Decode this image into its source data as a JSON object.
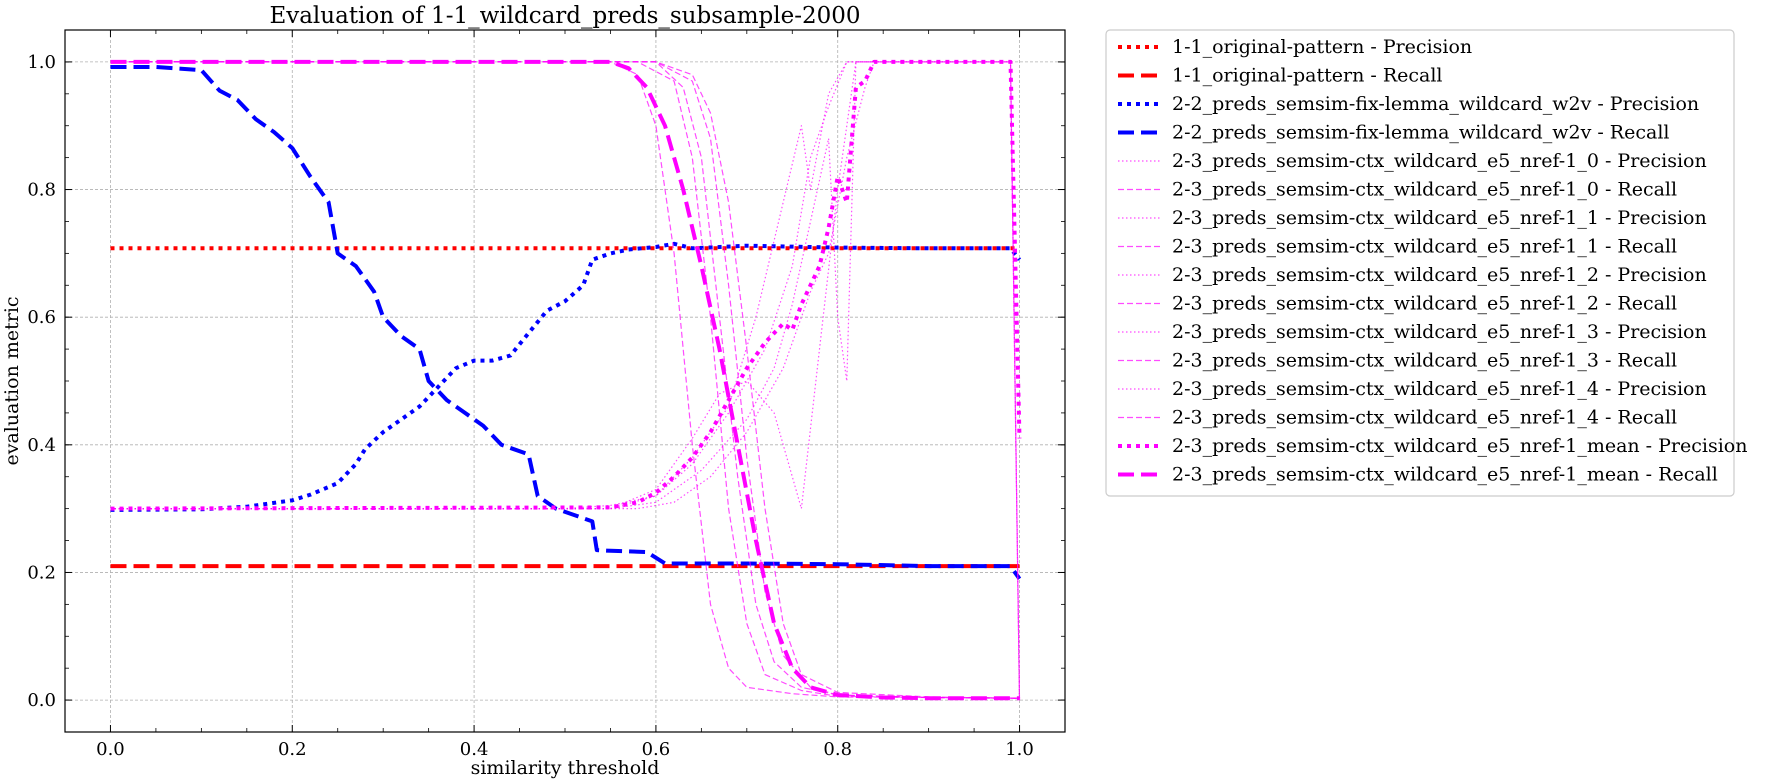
{
  "chart_data": {
    "type": "line",
    "title": "Evaluation of 1-1_wildcard_preds_subsample-2000",
    "xlabel": "similarity threshold",
    "ylabel": "evaluation metric",
    "xlim": [
      -0.05,
      1.05
    ],
    "ylim": [
      -0.05,
      1.05
    ],
    "xticks": [
      "0.0",
      "0.2",
      "0.4",
      "0.6",
      "0.8",
      "1.0"
    ],
    "yticks": [
      "0.0",
      "0.2",
      "0.4",
      "0.6",
      "0.8",
      "1.0"
    ],
    "grid": true,
    "legend_position": "outside-right-top",
    "series": [
      {
        "name": "1-1_original-pattern - Precision",
        "color": "#ff0000",
        "style": "dotted",
        "width": "thick",
        "points": [
          [
            0.0,
            0.708
          ],
          [
            1.0,
            0.708
          ]
        ]
      },
      {
        "name": "1-1_original-pattern - Recall",
        "color": "#ff0000",
        "style": "dashed",
        "width": "thick",
        "points": [
          [
            0.0,
            0.21
          ],
          [
            1.0,
            0.21
          ]
        ]
      },
      {
        "name": "2-2_preds_semsim-fix-lemma_wildcard_w2v - Precision",
        "color": "#0000ff",
        "style": "dotted",
        "width": "thick",
        "points": [
          [
            0.0,
            0.298
          ],
          [
            0.1,
            0.299
          ],
          [
            0.15,
            0.303
          ],
          [
            0.2,
            0.313
          ],
          [
            0.22,
            0.322
          ],
          [
            0.25,
            0.34
          ],
          [
            0.27,
            0.37
          ],
          [
            0.28,
            0.393
          ],
          [
            0.3,
            0.42
          ],
          [
            0.32,
            0.44
          ],
          [
            0.34,
            0.46
          ],
          [
            0.36,
            0.49
          ],
          [
            0.38,
            0.52
          ],
          [
            0.4,
            0.532
          ],
          [
            0.42,
            0.532
          ],
          [
            0.44,
            0.54
          ],
          [
            0.46,
            0.575
          ],
          [
            0.48,
            0.61
          ],
          [
            0.5,
            0.625
          ],
          [
            0.52,
            0.65
          ],
          [
            0.53,
            0.69
          ],
          [
            0.55,
            0.7
          ],
          [
            0.57,
            0.706
          ],
          [
            0.6,
            0.71
          ],
          [
            0.62,
            0.715
          ],
          [
            0.64,
            0.708
          ],
          [
            0.7,
            0.712
          ],
          [
            0.8,
            0.709
          ],
          [
            0.9,
            0.708
          ],
          [
            0.99,
            0.708
          ],
          [
            1.0,
            0.69
          ]
        ]
      },
      {
        "name": "2-2_preds_semsim-fix-lemma_wildcard_w2v - Recall",
        "color": "#0000ff",
        "style": "dashed",
        "width": "thick",
        "points": [
          [
            0.0,
            0.992
          ],
          [
            0.05,
            0.992
          ],
          [
            0.1,
            0.987
          ],
          [
            0.12,
            0.955
          ],
          [
            0.14,
            0.94
          ],
          [
            0.16,
            0.91
          ],
          [
            0.18,
            0.89
          ],
          [
            0.2,
            0.865
          ],
          [
            0.22,
            0.82
          ],
          [
            0.24,
            0.78
          ],
          [
            0.25,
            0.7
          ],
          [
            0.27,
            0.68
          ],
          [
            0.29,
            0.64
          ],
          [
            0.3,
            0.6
          ],
          [
            0.32,
            0.57
          ],
          [
            0.34,
            0.55
          ],
          [
            0.35,
            0.5
          ],
          [
            0.37,
            0.47
          ],
          [
            0.39,
            0.45
          ],
          [
            0.41,
            0.43
          ],
          [
            0.43,
            0.4
          ],
          [
            0.46,
            0.385
          ],
          [
            0.47,
            0.32
          ],
          [
            0.49,
            0.3
          ],
          [
            0.51,
            0.29
          ],
          [
            0.53,
            0.28
          ],
          [
            0.535,
            0.235
          ],
          [
            0.55,
            0.234
          ],
          [
            0.59,
            0.232
          ],
          [
            0.61,
            0.214
          ],
          [
            0.7,
            0.214
          ],
          [
            0.8,
            0.213
          ],
          [
            0.9,
            0.21
          ],
          [
            0.99,
            0.21
          ],
          [
            1.0,
            0.19
          ]
        ]
      },
      {
        "name": "2-3_preds_semsim-ctx_wildcard_e5_nref-1_0 - Precision",
        "color": "#ff00ff",
        "style": "dotted",
        "width": "thin",
        "points": [
          [
            0.0,
            0.3
          ],
          [
            0.5,
            0.3
          ],
          [
            0.55,
            0.305
          ],
          [
            0.6,
            0.32
          ],
          [
            0.64,
            0.37
          ],
          [
            0.68,
            0.45
          ],
          [
            0.72,
            0.55
          ],
          [
            0.75,
            0.68
          ],
          [
            0.77,
            0.85
          ],
          [
            0.79,
            0.93
          ],
          [
            0.81,
            1.0
          ],
          [
            0.99,
            1.0
          ],
          [
            1.0,
            0.0
          ]
        ]
      },
      {
        "name": "2-3_preds_semsim-ctx_wildcard_e5_nref-1_0 - Recall",
        "color": "#ff00ff",
        "style": "dashed",
        "width": "thin",
        "points": [
          [
            0.0,
            1.0
          ],
          [
            0.55,
            1.0
          ],
          [
            0.58,
            0.98
          ],
          [
            0.6,
            0.9
          ],
          [
            0.62,
            0.7
          ],
          [
            0.64,
            0.4
          ],
          [
            0.66,
            0.15
          ],
          [
            0.68,
            0.05
          ],
          [
            0.7,
            0.02
          ],
          [
            0.75,
            0.01
          ],
          [
            0.8,
            0.005
          ],
          [
            1.0,
            0.003
          ]
        ]
      },
      {
        "name": "2-3_preds_semsim-ctx_wildcard_e5_nref-1_1 - Precision",
        "color": "#ff00ff",
        "style": "dotted",
        "width": "thin",
        "points": [
          [
            0.0,
            0.3
          ],
          [
            0.55,
            0.3
          ],
          [
            0.6,
            0.33
          ],
          [
            0.64,
            0.41
          ],
          [
            0.67,
            0.48
          ],
          [
            0.7,
            0.5
          ],
          [
            0.73,
            0.45
          ],
          [
            0.76,
            0.3
          ],
          [
            0.78,
            0.55
          ],
          [
            0.8,
            0.8
          ],
          [
            0.82,
            1.0
          ],
          [
            0.99,
            1.0
          ],
          [
            1.0,
            0.0
          ]
        ]
      },
      {
        "name": "2-3_preds_semsim-ctx_wildcard_e5_nref-1_1 - Recall",
        "color": "#ff00ff",
        "style": "dashed",
        "width": "thin",
        "points": [
          [
            0.0,
            1.0
          ],
          [
            0.6,
            1.0
          ],
          [
            0.63,
            0.96
          ],
          [
            0.65,
            0.85
          ],
          [
            0.67,
            0.6
          ],
          [
            0.69,
            0.35
          ],
          [
            0.71,
            0.15
          ],
          [
            0.73,
            0.06
          ],
          [
            0.76,
            0.02
          ],
          [
            0.8,
            0.008
          ],
          [
            0.9,
            0.004
          ],
          [
            1.0,
            0.003
          ]
        ]
      },
      {
        "name": "2-3_preds_semsim-ctx_wildcard_e5_nref-1_2 - Precision",
        "color": "#ff00ff",
        "style": "dotted",
        "width": "thin",
        "points": [
          [
            0.0,
            0.3
          ],
          [
            0.55,
            0.3
          ],
          [
            0.6,
            0.32
          ],
          [
            0.64,
            0.38
          ],
          [
            0.68,
            0.46
          ],
          [
            0.71,
            0.6
          ],
          [
            0.74,
            0.78
          ],
          [
            0.76,
            0.9
          ],
          [
            0.77,
            0.8
          ],
          [
            0.79,
            0.95
          ],
          [
            0.81,
            1.0
          ],
          [
            0.99,
            1.0
          ],
          [
            1.0,
            0.0
          ]
        ]
      },
      {
        "name": "2-3_preds_semsim-ctx_wildcard_e5_nref-1_2 - Recall",
        "color": "#ff00ff",
        "style": "dashed",
        "width": "thin",
        "points": [
          [
            0.0,
            1.0
          ],
          [
            0.6,
            1.0
          ],
          [
            0.64,
            0.97
          ],
          [
            0.66,
            0.88
          ],
          [
            0.68,
            0.65
          ],
          [
            0.7,
            0.38
          ],
          [
            0.72,
            0.17
          ],
          [
            0.74,
            0.07
          ],
          [
            0.77,
            0.02
          ],
          [
            0.8,
            0.008
          ],
          [
            0.9,
            0.004
          ],
          [
            1.0,
            0.003
          ]
        ]
      },
      {
        "name": "2-3_preds_semsim-ctx_wildcard_e5_nref-1_3 - Precision",
        "color": "#ff00ff",
        "style": "dotted",
        "width": "thin",
        "points": [
          [
            0.0,
            0.3
          ],
          [
            0.55,
            0.3
          ],
          [
            0.6,
            0.31
          ],
          [
            0.65,
            0.36
          ],
          [
            0.7,
            0.44
          ],
          [
            0.73,
            0.52
          ],
          [
            0.75,
            0.62
          ],
          [
            0.77,
            0.75
          ],
          [
            0.79,
            0.88
          ],
          [
            0.8,
            0.6
          ],
          [
            0.81,
            0.5
          ],
          [
            0.82,
            1.0
          ],
          [
            0.99,
            1.0
          ],
          [
            1.0,
            0.0
          ]
        ]
      },
      {
        "name": "2-3_preds_semsim-ctx_wildcard_e5_nref-1_3 - Recall",
        "color": "#ff00ff",
        "style": "dashed",
        "width": "thin",
        "points": [
          [
            0.0,
            1.0
          ],
          [
            0.58,
            1.0
          ],
          [
            0.62,
            0.97
          ],
          [
            0.64,
            0.85
          ],
          [
            0.66,
            0.6
          ],
          [
            0.68,
            0.3
          ],
          [
            0.7,
            0.12
          ],
          [
            0.72,
            0.04
          ],
          [
            0.76,
            0.015
          ],
          [
            0.8,
            0.006
          ],
          [
            0.9,
            0.004
          ],
          [
            1.0,
            0.003
          ]
        ]
      },
      {
        "name": "2-3_preds_semsim-ctx_wildcard_e5_nref-1_4 - Precision",
        "color": "#ff00ff",
        "style": "dotted",
        "width": "thin",
        "points": [
          [
            0.0,
            0.3
          ],
          [
            0.58,
            0.3
          ],
          [
            0.62,
            0.31
          ],
          [
            0.66,
            0.35
          ],
          [
            0.7,
            0.42
          ],
          [
            0.74,
            0.52
          ],
          [
            0.77,
            0.64
          ],
          [
            0.79,
            0.7
          ],
          [
            0.81,
            0.85
          ],
          [
            0.83,
            0.96
          ],
          [
            0.84,
            1.0
          ],
          [
            0.99,
            1.0
          ],
          [
            1.0,
            0.0
          ]
        ]
      },
      {
        "name": "2-3_preds_semsim-ctx_wildcard_e5_nref-1_4 - Recall",
        "color": "#ff00ff",
        "style": "dashed",
        "width": "thin",
        "points": [
          [
            0.0,
            1.0
          ],
          [
            0.6,
            1.0
          ],
          [
            0.64,
            0.98
          ],
          [
            0.66,
            0.92
          ],
          [
            0.68,
            0.78
          ],
          [
            0.7,
            0.55
          ],
          [
            0.72,
            0.3
          ],
          [
            0.74,
            0.12
          ],
          [
            0.76,
            0.04
          ],
          [
            0.8,
            0.012
          ],
          [
            0.9,
            0.005
          ],
          [
            1.0,
            0.003
          ]
        ]
      },
      {
        "name": "2-3_preds_semsim-ctx_wildcard_e5_nref-1_mean - Precision",
        "color": "#ff00ff",
        "style": "dotted",
        "width": "thick",
        "points": [
          [
            0.0,
            0.3
          ],
          [
            0.55,
            0.302
          ],
          [
            0.58,
            0.31
          ],
          [
            0.6,
            0.325
          ],
          [
            0.62,
            0.35
          ],
          [
            0.64,
            0.38
          ],
          [
            0.66,
            0.42
          ],
          [
            0.68,
            0.47
          ],
          [
            0.7,
            0.52
          ],
          [
            0.72,
            0.56
          ],
          [
            0.74,
            0.59
          ],
          [
            0.75,
            0.58
          ],
          [
            0.76,
            0.62
          ],
          [
            0.78,
            0.68
          ],
          [
            0.79,
            0.74
          ],
          [
            0.8,
            0.82
          ],
          [
            0.81,
            0.78
          ],
          [
            0.82,
            0.96
          ],
          [
            0.83,
            0.97
          ],
          [
            0.84,
            1.0
          ],
          [
            0.99,
            1.0
          ],
          [
            1.0,
            0.41
          ]
        ]
      },
      {
        "name": "2-3_preds_semsim-ctx_wildcard_e5_nref-1_mean - Recall",
        "color": "#ff00ff",
        "style": "dashed",
        "width": "thick",
        "points": [
          [
            0.0,
            1.0
          ],
          [
            0.55,
            1.0
          ],
          [
            0.57,
            0.99
          ],
          [
            0.59,
            0.96
          ],
          [
            0.61,
            0.9
          ],
          [
            0.63,
            0.8
          ],
          [
            0.65,
            0.68
          ],
          [
            0.67,
            0.55
          ],
          [
            0.69,
            0.4
          ],
          [
            0.71,
            0.25
          ],
          [
            0.73,
            0.12
          ],
          [
            0.75,
            0.05
          ],
          [
            0.77,
            0.02
          ],
          [
            0.8,
            0.008
          ],
          [
            0.85,
            0.004
          ],
          [
            0.9,
            0.003
          ],
          [
            1.0,
            0.003
          ]
        ]
      }
    ]
  }
}
